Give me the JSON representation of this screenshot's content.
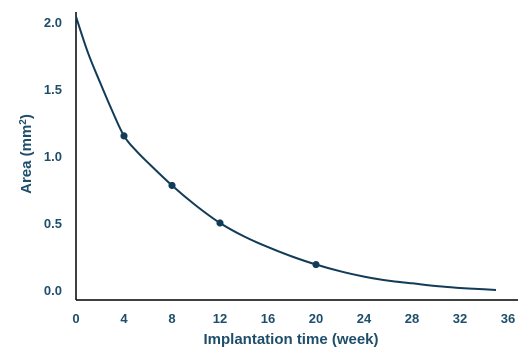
{
  "chart_data": {
    "type": "line",
    "title": "",
    "xlabel": "Implantation time (week)",
    "ylabel_text": "Area (mm",
    "ylabel_sup": "2",
    "ylabel_close": ")",
    "xlim": [
      0,
      36
    ],
    "ylim": [
      0,
      2
    ],
    "x_ticks": [
      "0",
      "4",
      "8",
      "12",
      "16",
      "20",
      "24",
      "28",
      "32",
      "36"
    ],
    "y_ticks": [
      "0.0",
      "0.5",
      "1.0",
      "1.5",
      "2.0"
    ],
    "grid": false,
    "legend": "none",
    "series": [
      {
        "points": [
          {
            "x": 4,
            "y": 1.15
          },
          {
            "x": 8,
            "y": 0.78
          },
          {
            "x": 12,
            "y": 0.5
          },
          {
            "x": 20,
            "y": 0.19
          }
        ],
        "fit_curve": {
          "x": [
            0,
            1,
            2,
            3,
            4,
            5,
            6,
            8,
            10,
            12,
            14,
            16,
            18,
            20,
            22,
            24,
            26,
            28,
            30,
            32,
            34,
            35
          ],
          "y": [
            2.04,
            1.77,
            1.55,
            1.34,
            1.15,
            1.04,
            0.95,
            0.78,
            0.63,
            0.5,
            0.4,
            0.32,
            0.25,
            0.19,
            0.14,
            0.1,
            0.07,
            0.05,
            0.03,
            0.015,
            0.005,
            0.0
          ]
        }
      }
    ],
    "colors": {
      "line": "#123b58",
      "text": "#1f4e6b"
    }
  }
}
